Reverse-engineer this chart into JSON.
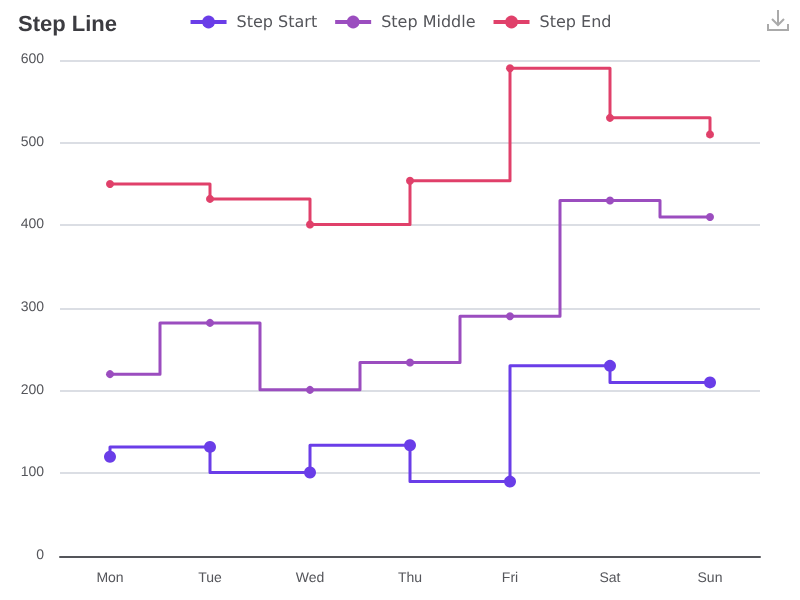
{
  "chart_data": {
    "type": "step",
    "title": "Step Line",
    "categories": [
      "Mon",
      "Tue",
      "Wed",
      "Thu",
      "Fri",
      "Sat",
      "Sun"
    ],
    "series": [
      {
        "name": "Step Start",
        "color": "#6a3de8",
        "values": [
          120,
          132,
          101,
          134,
          90,
          230,
          210
        ]
      },
      {
        "name": "Step Middle",
        "color": "#9b4dbf",
        "values": [
          220,
          282,
          201,
          234,
          290,
          430,
          410
        ]
      },
      {
        "name": "Step End",
        "color": "#e0406a",
        "values": [
          450,
          432,
          401,
          454,
          590,
          530,
          510
        ]
      }
    ],
    "ylim": [
      0,
      600
    ],
    "yticks": [
      0,
      100,
      200,
      300,
      400,
      500,
      600
    ],
    "grid": "y",
    "legend": "top",
    "marker": "circle"
  }
}
